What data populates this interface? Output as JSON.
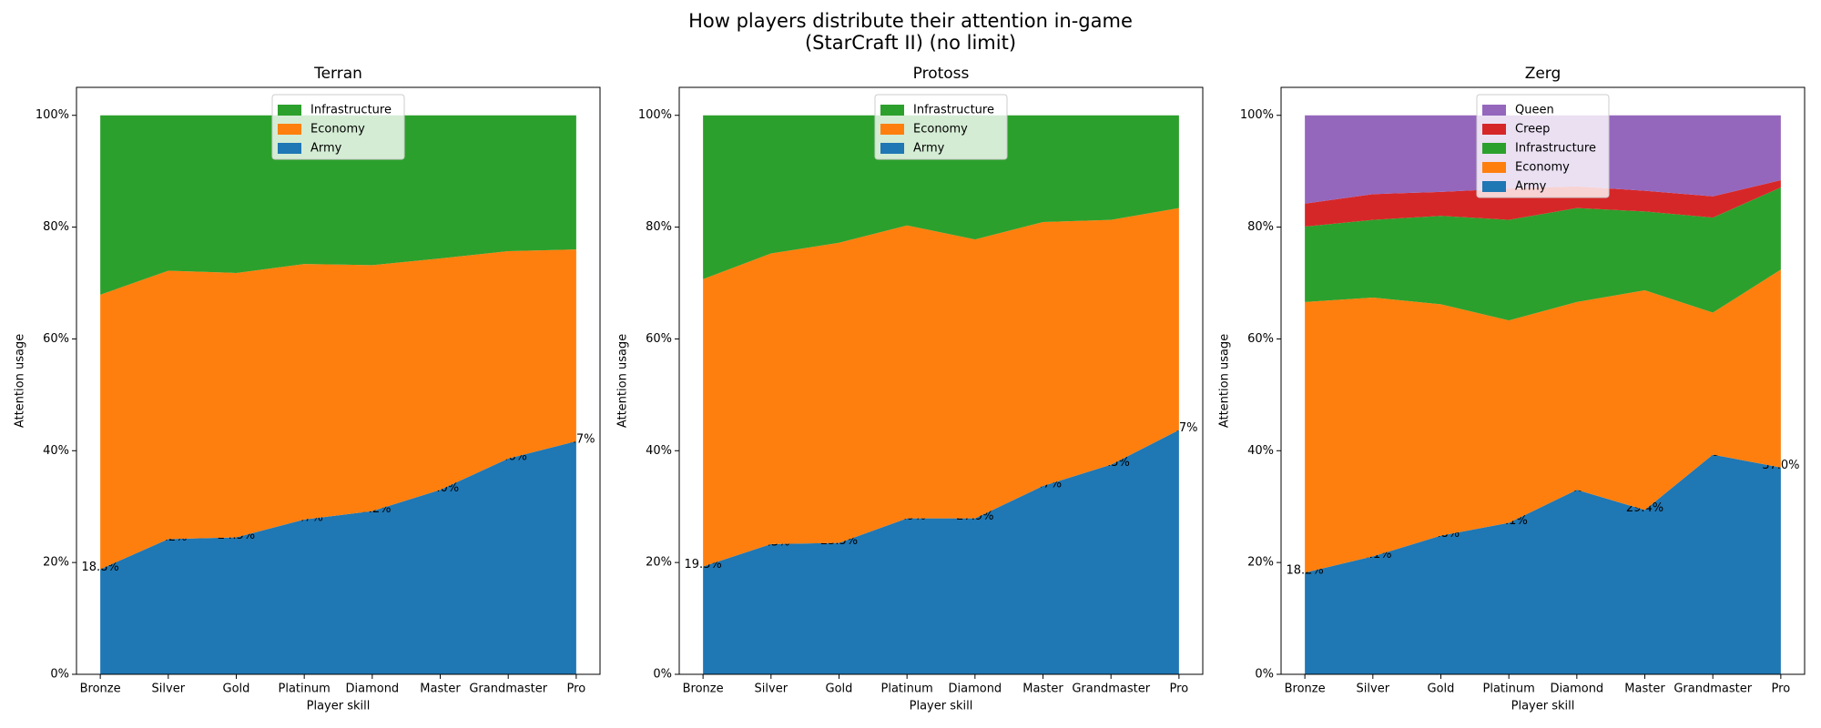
{
  "title": [
    "How players distribute their attention in-game",
    "(StarCraft II) (no limit)"
  ],
  "chart_data": [
    {
      "type": "stackplot",
      "title": "Terran",
      "xlabel": "Player skill",
      "ylabel": "Attention usage",
      "categories": [
        "Bronze",
        "Silver",
        "Gold",
        "Platinum",
        "Diamond",
        "Master",
        "Grandmaster",
        "Pro"
      ],
      "ylim": [
        0,
        105
      ],
      "yticks": [
        {
          "value": 0,
          "label": "0%"
        },
        {
          "value": 20,
          "label": "20%"
        },
        {
          "value": 40,
          "label": "40%"
        },
        {
          "value": 60,
          "label": "60%"
        },
        {
          "value": 80,
          "label": "80%"
        },
        {
          "value": 100,
          "label": "100%"
        }
      ],
      "legend": "upper center",
      "series": [
        {
          "name": "Army",
          "color": "#1f77b4",
          "values": [
            18.8,
            24.2,
            24.5,
            27.7,
            29.2,
            33.0,
            38.6,
            41.7
          ],
          "value_labels": [
            "18.8%",
            "24.2%",
            "24.5%",
            "27.7%",
            "29.2%",
            "33.0%",
            "38.6%",
            "41.7%"
          ]
        },
        {
          "name": "Economy",
          "color": "#ff7f0e",
          "values": [
            49.1,
            48.0,
            47.3,
            45.7,
            44.0,
            41.4,
            37.1,
            34.3
          ]
        },
        {
          "name": "Infrastructure",
          "color": "#2ca02c",
          "values": [
            32.1,
            27.8,
            28.2,
            26.6,
            26.8,
            25.6,
            24.3,
            24.0
          ]
        }
      ]
    },
    {
      "type": "stackplot",
      "title": "Protoss",
      "xlabel": "Player skill",
      "ylabel": "Attention usage",
      "categories": [
        "Bronze",
        "Silver",
        "Gold",
        "Platinum",
        "Diamond",
        "Master",
        "Grandmaster",
        "Pro"
      ],
      "ylim": [
        0,
        105
      ],
      "yticks": [
        {
          "value": 0,
          "label": "0%"
        },
        {
          "value": 20,
          "label": "20%"
        },
        {
          "value": 40,
          "label": "40%"
        },
        {
          "value": 60,
          "label": "60%"
        },
        {
          "value": 80,
          "label": "80%"
        },
        {
          "value": 100,
          "label": "100%"
        }
      ],
      "legend": "upper center",
      "series": [
        {
          "name": "Army",
          "color": "#1f77b4",
          "values": [
            19.3,
            23.3,
            23.5,
            27.9,
            27.9,
            33.7,
            37.5,
            43.7
          ],
          "value_labels": [
            "19.3%",
            "23.3%",
            "23.5%",
            "27.9%",
            "27.9%",
            "33.7%",
            "37.5%",
            "43.7%"
          ]
        },
        {
          "name": "Economy",
          "color": "#ff7f0e",
          "values": [
            51.4,
            52.0,
            53.7,
            52.4,
            49.9,
            47.2,
            43.8,
            39.7
          ]
        },
        {
          "name": "Infrastructure",
          "color": "#2ca02c",
          "values": [
            29.3,
            24.7,
            22.8,
            19.7,
            22.2,
            19.1,
            18.7,
            16.6
          ]
        }
      ]
    },
    {
      "type": "stackplot",
      "title": "Zerg",
      "xlabel": "Player skill",
      "ylabel": "Attention usage",
      "categories": [
        "Bronze",
        "Silver",
        "Gold",
        "Platinum",
        "Diamond",
        "Master",
        "Grandmaster",
        "Pro"
      ],
      "ylim": [
        0,
        105
      ],
      "yticks": [
        {
          "value": 0,
          "label": "0%"
        },
        {
          "value": 20,
          "label": "20%"
        },
        {
          "value": 40,
          "label": "40%"
        },
        {
          "value": 60,
          "label": "60%"
        },
        {
          "value": 80,
          "label": "80%"
        },
        {
          "value": 100,
          "label": "100%"
        }
      ],
      "legend": "upper center",
      "series": [
        {
          "name": "Army",
          "color": "#1f77b4",
          "values": [
            18.2,
            21.1,
            24.8,
            27.1,
            33.0,
            29.4,
            39.3,
            37.0
          ],
          "value_labels": [
            "18.2%",
            "21.1%",
            "24.8%",
            "27.1%",
            "33.0%",
            "29.4%",
            "39.3%",
            "37.0%"
          ]
        },
        {
          "name": "Economy",
          "color": "#ff7f0e",
          "values": [
            48.4,
            46.3,
            41.4,
            36.2,
            33.6,
            39.3,
            25.4,
            35.4
          ]
        },
        {
          "name": "Infrastructure",
          "color": "#2ca02c",
          "values": [
            13.5,
            13.9,
            15.8,
            18.0,
            16.8,
            14.1,
            17.0,
            14.7
          ]
        },
        {
          "name": "Creep",
          "color": "#d62728",
          "values": [
            4.1,
            4.6,
            4.3,
            5.6,
            3.9,
            3.7,
            3.8,
            1.3
          ]
        },
        {
          "name": "Queen",
          "color": "#9467bd",
          "values": [
            15.8,
            14.1,
            13.7,
            13.1,
            12.7,
            13.5,
            14.5,
            11.6
          ]
        }
      ]
    }
  ]
}
